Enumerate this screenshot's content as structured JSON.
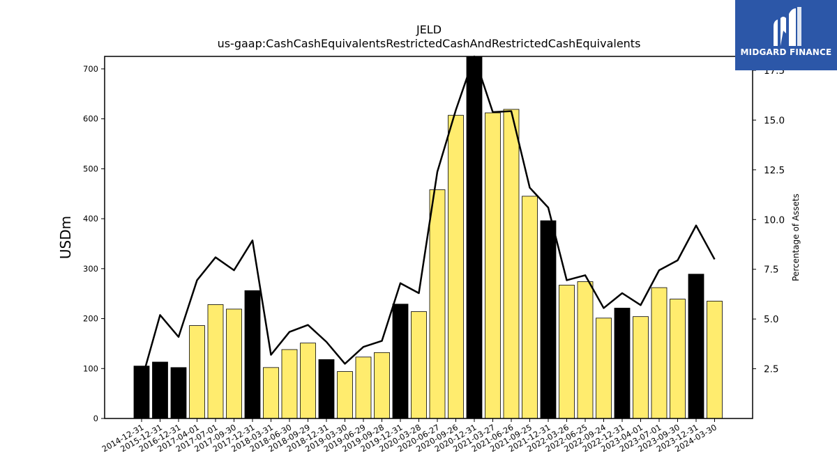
{
  "chart_data": {
    "type": "bar",
    "title": "JELD",
    "subtitle": "us-gaap:CashCashEquivalentsRestrictedCashAndRestrictedCashEquivalents",
    "ylabel": "USDm",
    "ylabel_right": "Percentage of Assets",
    "ylim": [
      0,
      725
    ],
    "ylim_right": [
      0,
      18.2
    ],
    "yticks": [
      0,
      100,
      200,
      300,
      400,
      500,
      600,
      700
    ],
    "yticks_right": [
      2.5,
      5.0,
      7.5,
      10.0,
      12.5,
      15.0,
      17.5
    ],
    "categories": [
      "2014-12-31",
      "2015-12-31",
      "2016-12-31",
      "2017-04-01",
      "2017-07-01",
      "2017-09-30",
      "2017-12-31",
      "2018-03-31",
      "2018-06-30",
      "2018-09-29",
      "2018-12-31",
      "2019-03-30",
      "2019-06-29",
      "2019-09-28",
      "2019-12-31",
      "2020-03-28",
      "2020-06-27",
      "2020-09-26",
      "2020-12-31",
      "2021-03-27",
      "2021-06-26",
      "2021-09-25",
      "2021-12-31",
      "2022-03-26",
      "2022-06-25",
      "2022-09-24",
      "2022-12-31",
      "2023-04-01",
      "2023-07-01",
      "2023-09-30",
      "2023-12-31",
      "2024-03-30"
    ],
    "series": [
      {
        "values": [
          105,
          113,
          102,
          186,
          228,
          219,
          256,
          102,
          138,
          151,
          118,
          94,
          123,
          132,
          229,
          214,
          458,
          607,
          727,
          612,
          619,
          445,
          396,
          267,
          274,
          201,
          221,
          204,
          262,
          239,
          289,
          235
        ],
        "annual": [
          true,
          true,
          true,
          false,
          false,
          false,
          true,
          false,
          false,
          false,
          true,
          false,
          false,
          false,
          true,
          false,
          false,
          false,
          true,
          false,
          false,
          false,
          true,
          false,
          false,
          false,
          true,
          false,
          false,
          false,
          true,
          false
        ]
      },
      {
        "axis": "right",
        "type": "line",
        "values": [
          1.9,
          5.2,
          4.1,
          6.95,
          8.1,
          7.45,
          8.95,
          3.2,
          4.35,
          4.7,
          3.85,
          2.75,
          3.6,
          3.9,
          6.8,
          6.3,
          12.4,
          15.5,
          18.2,
          15.4,
          15.45,
          11.6,
          10.6,
          6.95,
          7.2,
          5.55,
          6.3,
          5.7,
          7.45,
          7.95,
          9.7,
          8.0
        ]
      }
    ],
    "colors": {
      "annual_bar": "#000000",
      "quarter_bar": "#ffec6e",
      "line": "#000000"
    },
    "grid": false
  },
  "logo": {
    "text": "MIDGARD FINANCE",
    "background": "#2c57a8"
  }
}
